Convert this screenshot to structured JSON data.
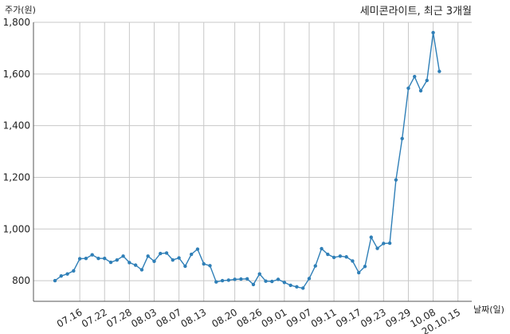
{
  "chart_data": {
    "type": "line",
    "title": "세미콘라이트, 최근 3개월",
    "xlabel": "날짜(일)",
    "ylabel": "주가(원)",
    "ylim": [
      720,
      1800
    ],
    "yticks": [
      800,
      1000,
      1200,
      1400,
      1600,
      1800
    ],
    "ytick_labels": [
      "800",
      "1,000",
      "1,200",
      "1,400",
      "1,600",
      "1,800"
    ],
    "xticks": [
      {
        "label": "07.16",
        "index": 4
      },
      {
        "label": "07.22",
        "index": 8
      },
      {
        "label": "07.28",
        "index": 12
      },
      {
        "label": "08.03",
        "index": 16
      },
      {
        "label": "08.07",
        "index": 20
      },
      {
        "label": "08.13",
        "index": 24
      },
      {
        "label": "08.20",
        "index": 29
      },
      {
        "label": "08.26",
        "index": 33
      },
      {
        "label": "09.01",
        "index": 37
      },
      {
        "label": "09.07",
        "index": 41
      },
      {
        "label": "09.11",
        "index": 45
      },
      {
        "label": "09.17",
        "index": 49
      },
      {
        "label": "09.23",
        "index": 53
      },
      {
        "label": "09.29",
        "index": 57
      },
      {
        "label": "10.08",
        "index": 61
      },
      {
        "label": "20.10.15",
        "index": 65
      }
    ],
    "grid": true,
    "color": "#2f7fb7",
    "values": [
      800,
      818,
      826,
      838,
      885,
      886,
      900,
      886,
      886,
      871,
      880,
      895,
      870,
      860,
      842,
      895,
      875,
      905,
      907,
      880,
      888,
      856,
      902,
      922,
      865,
      858,
      795,
      800,
      802,
      805,
      806,
      807,
      785,
      826,
      798,
      797,
      805,
      793,
      782,
      776,
      771,
      808,
      857,
      924,
      902,
      890,
      895,
      892,
      876,
      831,
      855,
      968,
      925,
      944,
      945,
      1190,
      1350,
      1545,
      1590,
      1535,
      1575,
      1760,
      1610
    ]
  }
}
